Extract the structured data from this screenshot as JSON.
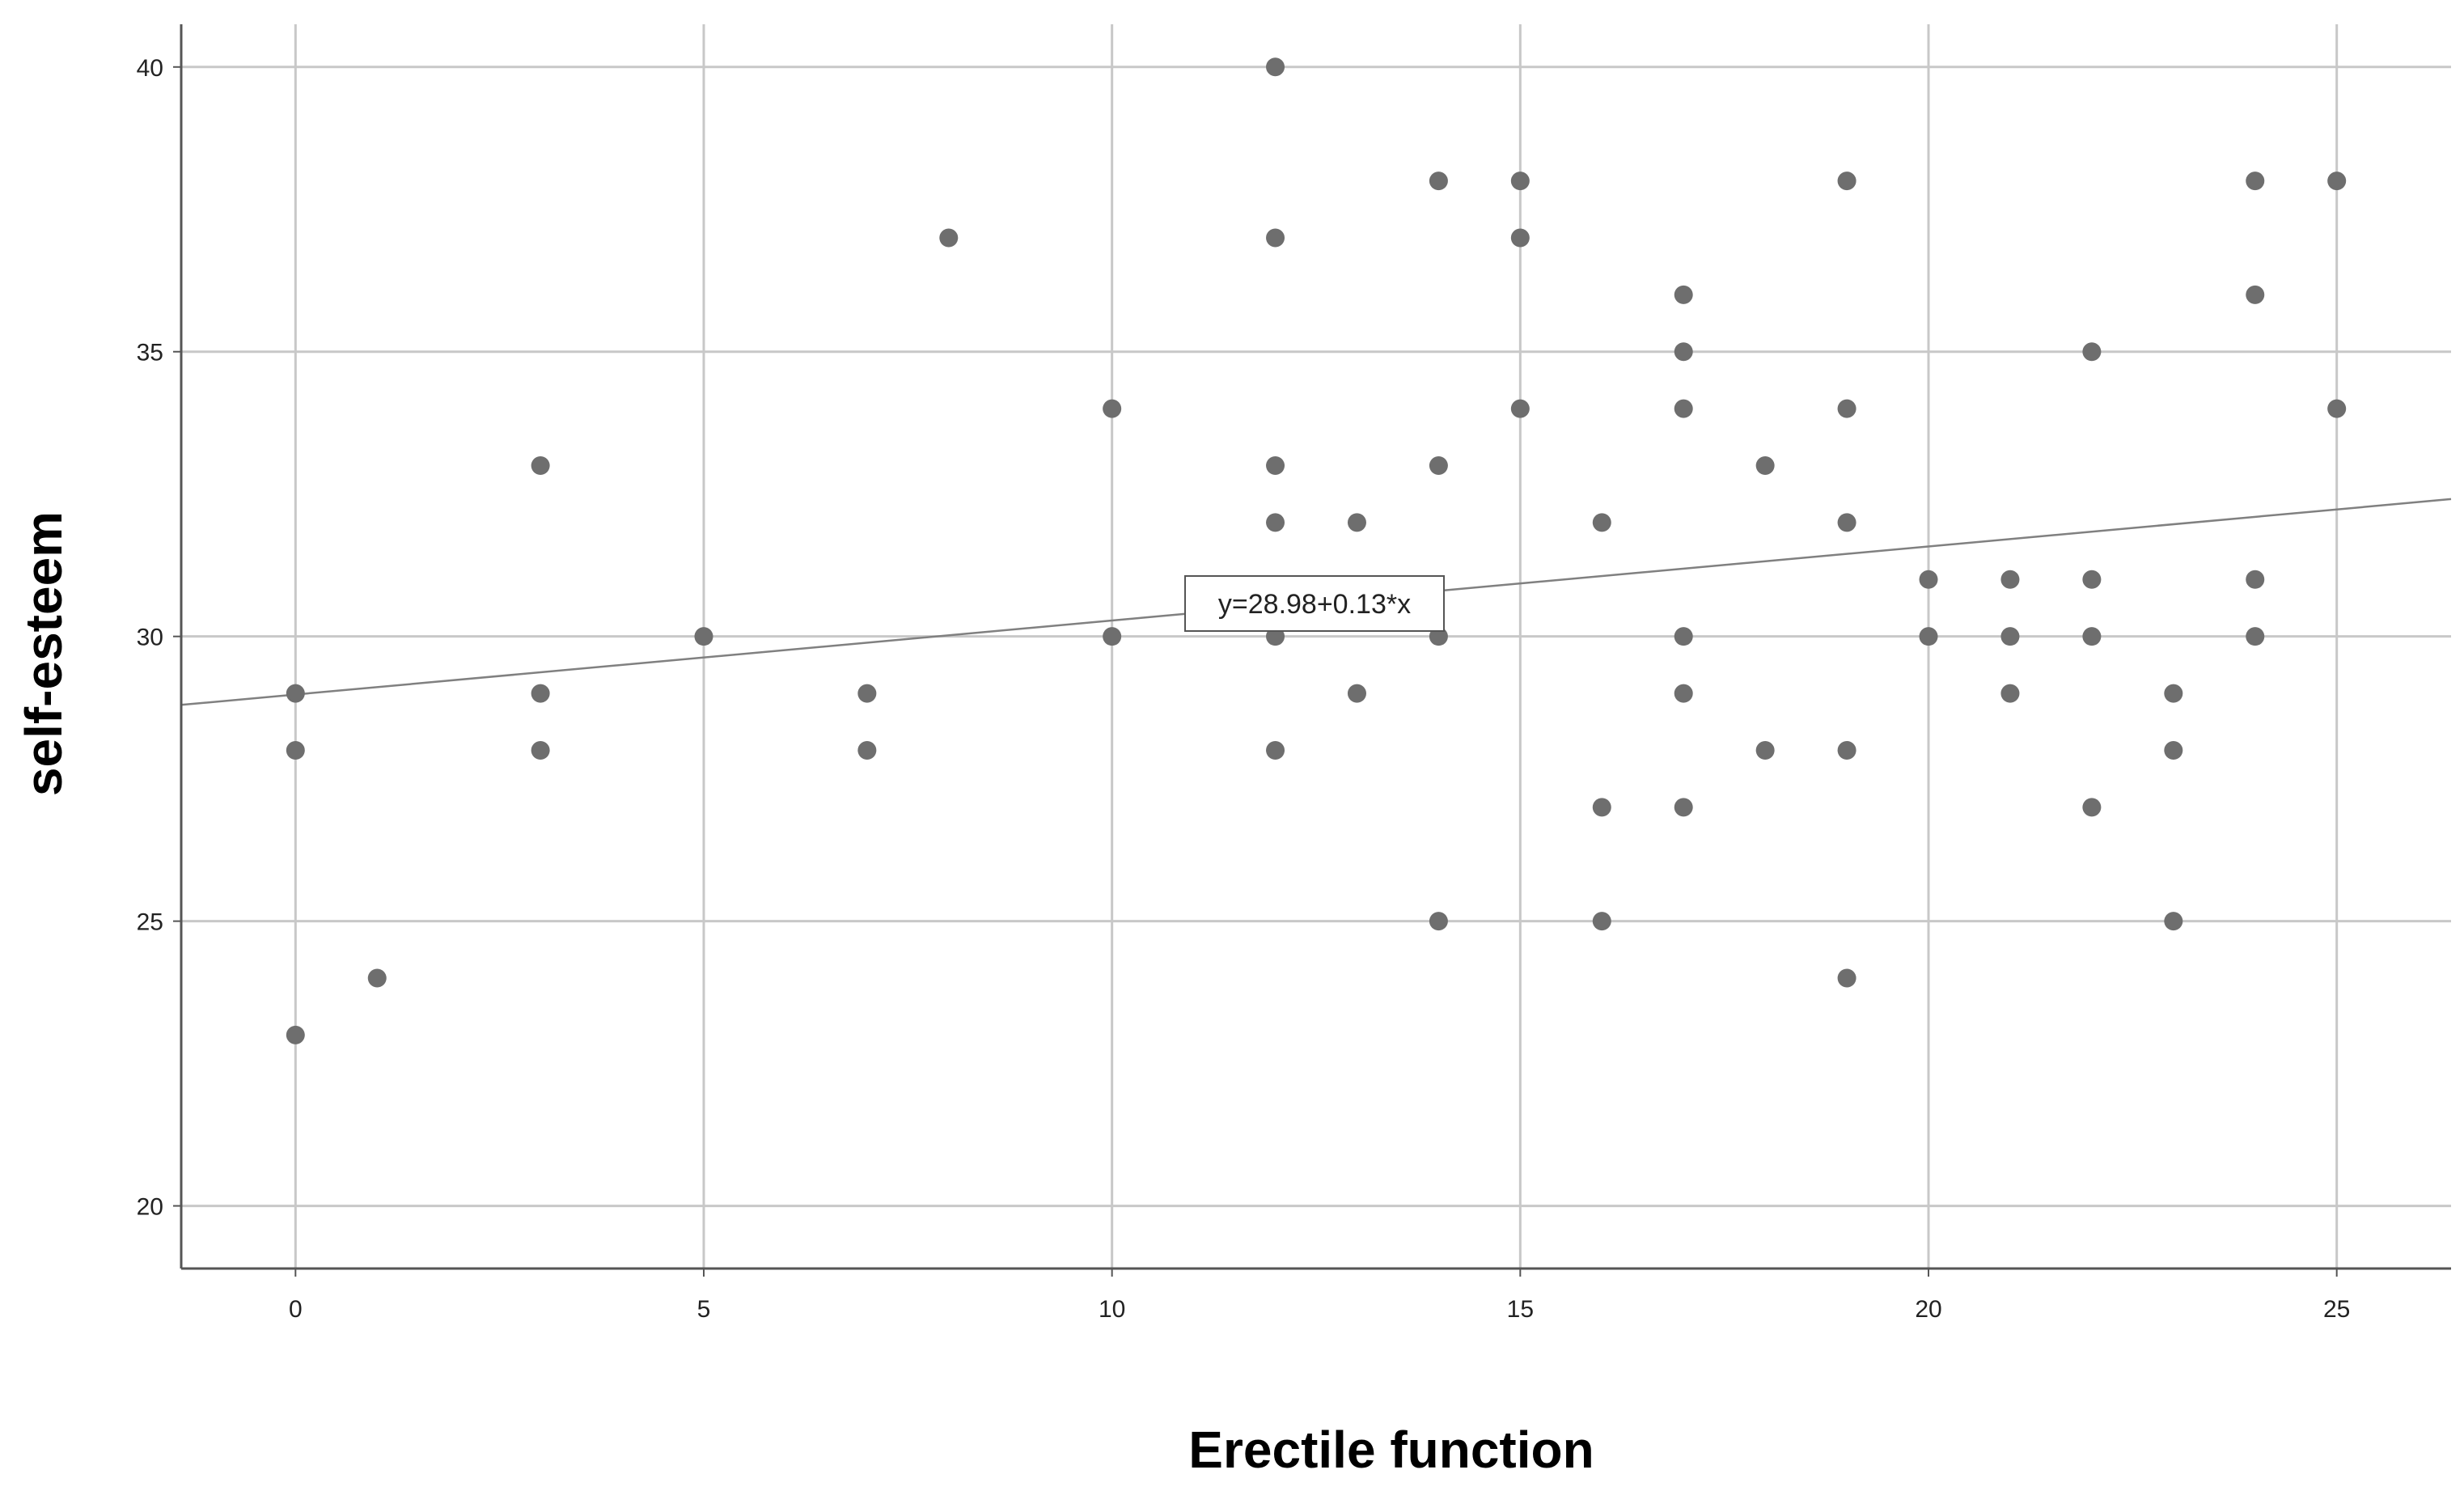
{
  "chart_data": {
    "type": "scatter",
    "title": "",
    "xlabel": "Erectile function",
    "ylabel": "self-esteem",
    "xlim": [
      -1.4,
      26.4
    ],
    "ylim": [
      18.9,
      40.75
    ],
    "x_ticks": [
      0,
      5,
      10,
      15,
      20,
      25
    ],
    "y_ticks": [
      20,
      25,
      30,
      35,
      40
    ],
    "grid": true,
    "legend": "none",
    "colors": {
      "points": "#6e6e6e",
      "grid": "#c8c8c8",
      "axis": "#555555",
      "fit_line": "#808080"
    },
    "points": [
      {
        "x": 0,
        "y": 29
      },
      {
        "x": 0,
        "y": 28
      },
      {
        "x": 0,
        "y": 23
      },
      {
        "x": 1,
        "y": 24
      },
      {
        "x": 3,
        "y": 33
      },
      {
        "x": 3,
        "y": 29
      },
      {
        "x": 3,
        "y": 28
      },
      {
        "x": 5,
        "y": 30
      },
      {
        "x": 7,
        "y": 29
      },
      {
        "x": 7,
        "y": 28
      },
      {
        "x": 8,
        "y": 37
      },
      {
        "x": 10,
        "y": 34
      },
      {
        "x": 10,
        "y": 30
      },
      {
        "x": 12,
        "y": 40
      },
      {
        "x": 12,
        "y": 37
      },
      {
        "x": 12,
        "y": 33
      },
      {
        "x": 12,
        "y": 32
      },
      {
        "x": 12,
        "y": 30
      },
      {
        "x": 12,
        "y": 28
      },
      {
        "x": 13,
        "y": 32
      },
      {
        "x": 13,
        "y": 29
      },
      {
        "x": 14,
        "y": 38
      },
      {
        "x": 14,
        "y": 33
      },
      {
        "x": 14,
        "y": 30
      },
      {
        "x": 14,
        "y": 25
      },
      {
        "x": 15,
        "y": 38
      },
      {
        "x": 15,
        "y": 37
      },
      {
        "x": 15,
        "y": 34
      },
      {
        "x": 16,
        "y": 32
      },
      {
        "x": 16,
        "y": 27
      },
      {
        "x": 16,
        "y": 25
      },
      {
        "x": 17,
        "y": 36
      },
      {
        "x": 17,
        "y": 35
      },
      {
        "x": 17,
        "y": 34
      },
      {
        "x": 17,
        "y": 30
      },
      {
        "x": 17,
        "y": 29
      },
      {
        "x": 17,
        "y": 27
      },
      {
        "x": 18,
        "y": 33
      },
      {
        "x": 18,
        "y": 28
      },
      {
        "x": 19,
        "y": 38
      },
      {
        "x": 19,
        "y": 34
      },
      {
        "x": 19,
        "y": 32
      },
      {
        "x": 19,
        "y": 28
      },
      {
        "x": 19,
        "y": 24
      },
      {
        "x": 20,
        "y": 31
      },
      {
        "x": 20,
        "y": 30
      },
      {
        "x": 21,
        "y": 31
      },
      {
        "x": 21,
        "y": 30
      },
      {
        "x": 21,
        "y": 29
      },
      {
        "x": 22,
        "y": 35
      },
      {
        "x": 22,
        "y": 31
      },
      {
        "x": 22,
        "y": 30
      },
      {
        "x": 22,
        "y": 27
      },
      {
        "x": 23,
        "y": 29
      },
      {
        "x": 23,
        "y": 28
      },
      {
        "x": 23,
        "y": 25
      },
      {
        "x": 24,
        "y": 38
      },
      {
        "x": 24,
        "y": 36
      },
      {
        "x": 24,
        "y": 31
      },
      {
        "x": 24,
        "y": 30
      },
      {
        "x": 25,
        "y": 38
      },
      {
        "x": 25,
        "y": 34
      }
    ],
    "fit_line": {
      "intercept": 28.98,
      "slope": 0.13,
      "label": "y=28.98+0.13*x"
    }
  }
}
